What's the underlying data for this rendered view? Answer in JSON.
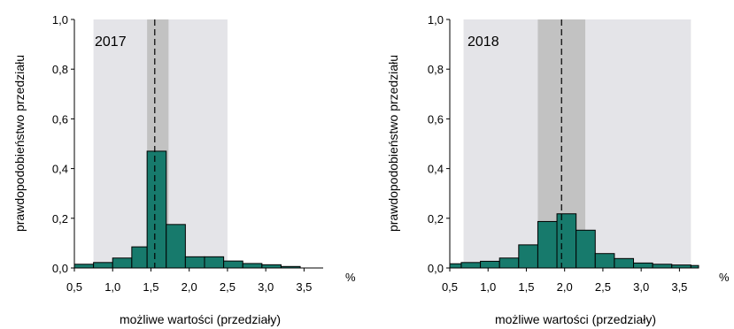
{
  "colors": {
    "bar_fill": "#177a6c",
    "bar_stroke": "#000000",
    "outer_band": "#e4e4e8",
    "inner_band": "#c2c2c2",
    "median_line": "#000000"
  },
  "chart_data": [
    {
      "type": "bar",
      "title": "2017",
      "xlabel": "możliwe wartości (przedziały)",
      "ylabel": "prawdopodobieństwo przedziału",
      "unit": "%",
      "xlim": [
        0.5,
        3.75
      ],
      "ylim": [
        0,
        1.0
      ],
      "xticks": [
        "0,5",
        "1,0",
        "1,5",
        "2,0",
        "2,5",
        "3,0",
        "3,5"
      ],
      "xtick_values": [
        0.5,
        1.0,
        1.5,
        2.0,
        2.5,
        3.0,
        3.5
      ],
      "yticks": [
        "0,0",
        "0,2",
        "0,4",
        "0,6",
        "0,8",
        "1,0"
      ],
      "ytick_values": [
        0,
        0.2,
        0.4,
        0.6,
        0.8,
        1.0
      ],
      "bins": [
        [
          0.5,
          0.75,
          0.015
        ],
        [
          0.75,
          1.0,
          0.022
        ],
        [
          1.0,
          1.25,
          0.04
        ],
        [
          1.25,
          1.45,
          0.085
        ],
        [
          1.45,
          1.7,
          0.47
        ],
        [
          1.7,
          1.95,
          0.175
        ],
        [
          1.95,
          2.2,
          0.045
        ],
        [
          2.2,
          2.45,
          0.045
        ],
        [
          2.45,
          2.7,
          0.028
        ],
        [
          2.7,
          2.95,
          0.018
        ],
        [
          2.95,
          3.2,
          0.013
        ],
        [
          3.2,
          3.45,
          0.006
        ]
      ],
      "outer_interval": [
        0.75,
        2.5
      ],
      "inner_interval": [
        1.45,
        1.73
      ],
      "median": 1.55
    },
    {
      "type": "bar",
      "title": "2018",
      "xlabel": "możliwe wartości (przedziały)",
      "ylabel": "prawdopodobieństwo przedziału",
      "unit": "%",
      "xlim": [
        0.5,
        3.75
      ],
      "ylim": [
        0,
        1.0
      ],
      "xticks": [
        "0,5",
        "1,0",
        "1,5",
        "2,0",
        "2,5",
        "3,0",
        "3,5"
      ],
      "xtick_values": [
        0.5,
        1.0,
        1.5,
        2.0,
        2.5,
        3.0,
        3.5
      ],
      "yticks": [
        "0,0",
        "0,2",
        "0,4",
        "0,6",
        "0,8",
        "1,0"
      ],
      "ytick_values": [
        0,
        0.2,
        0.4,
        0.6,
        0.8,
        1.0
      ],
      "bins": [
        [
          0.5,
          0.65,
          0.017
        ],
        [
          0.65,
          0.9,
          0.022
        ],
        [
          0.9,
          1.15,
          0.027
        ],
        [
          1.15,
          1.4,
          0.04
        ],
        [
          1.4,
          1.65,
          0.093
        ],
        [
          1.65,
          1.9,
          0.187
        ],
        [
          1.9,
          2.15,
          0.218
        ],
        [
          2.15,
          2.4,
          0.152
        ],
        [
          2.4,
          2.65,
          0.058
        ],
        [
          2.65,
          2.9,
          0.038
        ],
        [
          2.9,
          3.15,
          0.02
        ],
        [
          3.15,
          3.4,
          0.015
        ],
        [
          3.4,
          3.65,
          0.012
        ],
        [
          3.65,
          3.75,
          0.01
        ]
      ],
      "outer_interval": [
        0.68,
        3.65
      ],
      "inner_interval": [
        1.65,
        2.27
      ],
      "median": 1.96
    }
  ]
}
